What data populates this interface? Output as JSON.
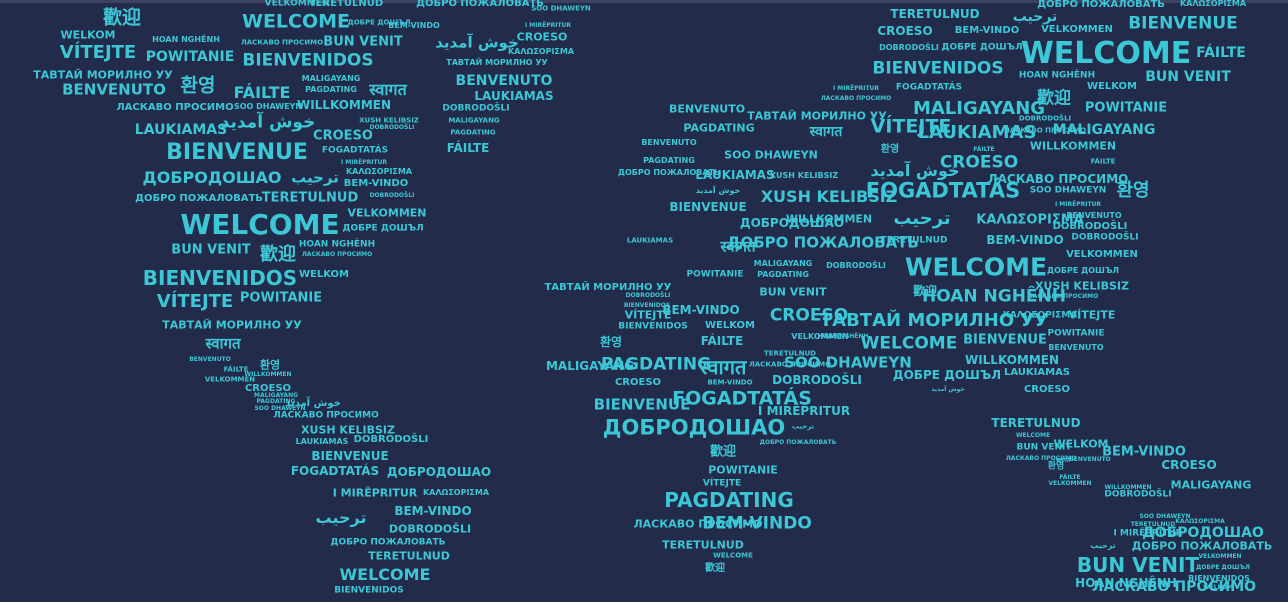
{
  "text_color": "#3cc7d6",
  "background_color": "#232b4a",
  "words": [
    {
      "t": "VELKOMMEN"
    },
    {
      "t": "TERETULNUD"
    },
    {
      "t": "ДОБРО ПОЖАЛОВАТЬ"
    },
    {
      "t": "SOO DHAWEYN"
    },
    {
      "t": "歡迎"
    },
    {
      "t": "WELCOME"
    },
    {
      "t": "ДОБРЕ ДОШЪЛ"
    },
    {
      "t": "BEM-VINDO"
    },
    {
      "t": "I MIRËPRITUR"
    },
    {
      "t": "WELKOM"
    },
    {
      "t": "HOAN NGHÊNH"
    },
    {
      "t": "BUN VENIT"
    },
    {
      "t": "خوش آمدید"
    },
    {
      "t": "CROESO"
    },
    {
      "t": "VÍTEJTE"
    },
    {
      "t": "POWITANIE"
    },
    {
      "t": "ЛАСКАВО ПРОСИМО"
    },
    {
      "t": "ΚΑΛΩΣΟΡΙΣΜΑ"
    },
    {
      "t": "BIENVENIDOS"
    },
    {
      "t": "ТАВТАЙ МОРИЛНО УУ"
    },
    {
      "t": "ТАВТАЙ МОРИЛНО УУ"
    },
    {
      "t": "MALIGAYANG"
    },
    {
      "t": "BENVENUTO"
    },
    {
      "t": "BENVENUTO"
    },
    {
      "t": "환영"
    },
    {
      "t": "FÁILTE"
    },
    {
      "t": "PAGDATING"
    },
    {
      "t": "स्वागत"
    },
    {
      "t": "LAUKIAMAS"
    },
    {
      "t": "ЛАСКАВО ПРОСИМО"
    },
    {
      "t": "SOO DHAWEYN"
    },
    {
      "t": "WILLKOMMEN"
    },
    {
      "t": "DOBRODOŠLI"
    },
    {
      "t": "MALIGAYANG"
    },
    {
      "t": "XUSH KELIBSIZ"
    },
    {
      "t": "LAUKIAMAS"
    },
    {
      "t": "خوش آمدید"
    },
    {
      "t": "CROESO"
    },
    {
      "t": "DOBRODOŠLI"
    },
    {
      "t": "PAGDATING"
    },
    {
      "t": "BIENVENUE"
    },
    {
      "t": "FOGADTATÁS"
    },
    {
      "t": "FÁILTE"
    },
    {
      "t": "I MIRËPRITUR"
    },
    {
      "t": "ДОБРОДОШАО"
    },
    {
      "t": "ترحيب"
    },
    {
      "t": "ΚΑΛΩΣΟΡΙΣΜΑ"
    },
    {
      "t": "BEM-VINDO"
    },
    {
      "t": "ДОБРО ПОЖАЛОВАТЬ"
    },
    {
      "t": "TERETULNUD"
    },
    {
      "t": "DOBRODOŠLI"
    },
    {
      "t": "WELCOME"
    },
    {
      "t": "VELKOMMEN"
    },
    {
      "t": "ДОБРЕ ДОШЪЛ"
    },
    {
      "t": "BUN VENIT"
    },
    {
      "t": "歡迎"
    },
    {
      "t": "HOAN NGHÊNH"
    },
    {
      "t": "ЛАСКАВО ПРОСИМО"
    },
    {
      "t": "BIENVENIDOS"
    },
    {
      "t": "WELKOM"
    },
    {
      "t": "VÍTEJTE"
    },
    {
      "t": "POWITANIE"
    },
    {
      "t": "ТАВТАЙ МОРИЛНО УУ"
    },
    {
      "t": "स्वागत"
    },
    {
      "t": "BENVENUTO"
    },
    {
      "t": "환영"
    },
    {
      "t": "FÁILTE"
    },
    {
      "t": "WILLKOMMEN"
    },
    {
      "t": "VELKOMMEN"
    },
    {
      "t": "CROESO"
    },
    {
      "t": "MALIGAYANG"
    },
    {
      "t": "PAGDATING"
    },
    {
      "t": "SOO DHAWEYN"
    },
    {
      "t": "خوش آمدید"
    },
    {
      "t": "ЛАСКАВО ПРОСИМО"
    },
    {
      "t": "XUSH KELIBSIZ"
    },
    {
      "t": "LAUKIAMAS"
    },
    {
      "t": "DOBRODOŠLI"
    },
    {
      "t": "BIENVENUE"
    },
    {
      "t": "FOGADTATÁS"
    },
    {
      "t": "ДОБРОДОШАО"
    },
    {
      "t": "I MIRËPRITUR"
    },
    {
      "t": "ΚΑΛΩΣΟΡΙΣΜΑ"
    },
    {
      "t": "ترحيب"
    },
    {
      "t": "BEM-VINDO"
    },
    {
      "t": "DOBRODOŠLI"
    },
    {
      "t": "ДОБРО ПОЖАЛОВАТЬ"
    },
    {
      "t": "TERETULNUD"
    },
    {
      "t": "WELCOME"
    },
    {
      "t": "BIENVENIDOS"
    },
    {
      "t": "TERETULNUD"
    },
    {
      "t": "ترحيب"
    },
    {
      "t": "ДОБРО ПОЖАЛОВАТЬ"
    },
    {
      "t": "ΚΑΛΩΣΟΡΙΣΜΑ"
    },
    {
      "t": "CROESO"
    },
    {
      "t": "BEM-VINDO"
    },
    {
      "t": "VELKOMMEN"
    },
    {
      "t": "BIENVENUE"
    },
    {
      "t": "DOBRODOŠLI"
    },
    {
      "t": "ДОБРЕ ДОШЪЛ"
    },
    {
      "t": "WELCOME"
    },
    {
      "t": "FÁILTE"
    },
    {
      "t": "BIENVENIDOS"
    },
    {
      "t": "HOAN NGHÊNH"
    },
    {
      "t": "BUN VENIT"
    },
    {
      "t": "I MIRËPRITUR"
    },
    {
      "t": "FOGADTATÁS"
    },
    {
      "t": "WELKOM"
    },
    {
      "t": "ЛАСКАВО ПРОСИМО"
    },
    {
      "t": "歡迎"
    },
    {
      "t": "POWITANIE"
    },
    {
      "t": "BENVENUTO"
    },
    {
      "t": "ТАВТАЙ МОРИЛНО УУ"
    },
    {
      "t": "VÍTEJTE"
    },
    {
      "t": "MALIGAYANG"
    },
    {
      "t": "PAGDATING"
    },
    {
      "t": "स्वागत"
    },
    {
      "t": "LAUKIAMAS"
    },
    {
      "t": "BENVENUTO"
    },
    {
      "t": "환영"
    },
    {
      "t": "FÁILTE"
    },
    {
      "t": "DOBRODOŠLI"
    },
    {
      "t": "ЛАСКАВО ПРОСИМО"
    },
    {
      "t": "SOO DHAWEYN"
    },
    {
      "t": "WILLKOMMEN"
    },
    {
      "t": "MALIGAYANG"
    },
    {
      "t": "PAGDATING"
    },
    {
      "t": "ДОБРО ПОЖАЛОВАТЬ"
    },
    {
      "t": "LAUKIAMAS"
    },
    {
      "t": "خوش آمدید"
    },
    {
      "t": "XUSH KELIBSIZ"
    },
    {
      "t": "FÁILTE"
    },
    {
      "t": "XUSH KELIBSIZ"
    },
    {
      "t": "CROESO"
    },
    {
      "t": "ЛАСКАВО ПРОСИМО"
    },
    {
      "t": "خوش آمدید"
    },
    {
      "t": "BIENVENUE"
    },
    {
      "t": "FOGADTATÁS"
    },
    {
      "t": "환영"
    },
    {
      "t": "SOO DHAWEYN"
    },
    {
      "t": "I MIRËPRITUR"
    },
    {
      "t": "BENVENUTO"
    },
    {
      "t": "WILLKOMMEN"
    },
    {
      "t": "ДОБРОДОШАО"
    },
    {
      "t": "ترحيب"
    },
    {
      "t": "ΚΑΛΩΣΟΡΙΣΜΑ"
    },
    {
      "t": "DOBRODOŠLI"
    },
    {
      "t": "LAUKIAMAS"
    },
    {
      "t": "स्वागत"
    },
    {
      "t": "ДОБРО ПОЖАЛОВАТЬ"
    },
    {
      "t": "TERETULNUD"
    },
    {
      "t": "BEM-VINDO"
    },
    {
      "t": "DOBRODOŠLI"
    },
    {
      "t": "MALIGAYANG"
    },
    {
      "t": "PAGDATING"
    },
    {
      "t": "DOBRODOŠLI"
    },
    {
      "t": "WELCOME"
    },
    {
      "t": "VELKOMMEN"
    },
    {
      "t": "ДОБРЕ ДОШЪЛ"
    },
    {
      "t": "POWITANIE"
    },
    {
      "t": "ТАВТАЙ МОРИЛНО УУ"
    },
    {
      "t": "BUN VENIT"
    },
    {
      "t": "歡迎"
    },
    {
      "t": "HOAN NGHÊNH"
    },
    {
      "t": "XUSH KELIBSIZ"
    },
    {
      "t": "ЛАСКАВО ПРОСИМО"
    },
    {
      "t": "DOBRODOŠLI"
    },
    {
      "t": "BIENVENIDOS"
    },
    {
      "t": "BEM-VINDO"
    },
    {
      "t": "VÍTEJTE"
    },
    {
      "t": "BIENVENIDOS"
    },
    {
      "t": "WELKOM"
    },
    {
      "t": "CROESO"
    },
    {
      "t": "HOAN NGHÊNH"
    },
    {
      "t": "VELKOMMEN"
    },
    {
      "t": "ТАВТАЙ МОРИЛНО УУ"
    },
    {
      "t": "ΚΑΛΩΣΟΡΙΣΜΑ"
    },
    {
      "t": "VÍTEJTE"
    },
    {
      "t": "POWITANIE"
    },
    {
      "t": "WELCOME"
    },
    {
      "t": "BIENVENUE"
    },
    {
      "t": "BENVENUTO"
    },
    {
      "t": "환영"
    },
    {
      "t": "FÁILTE"
    },
    {
      "t": "MALIGAYANG"
    },
    {
      "t": "PAGDATING"
    },
    {
      "t": "स्वागत"
    },
    {
      "t": "TERETULNUD"
    },
    {
      "t": "ЛАСКАВО ПРОСИМО"
    },
    {
      "t": "SOO DHAWEYN"
    },
    {
      "t": "WILLKOMMEN"
    },
    {
      "t": "CROESO"
    },
    {
      "t": "BEM-VINDO"
    },
    {
      "t": "DOBRODOŠLI"
    },
    {
      "t": "ДОБРЕ ДОШЪЛ"
    },
    {
      "t": "LAUKIAMAS"
    },
    {
      "t": "خوش آمدید"
    },
    {
      "t": "CROESO"
    },
    {
      "t": "BIENVENUE"
    },
    {
      "t": "FOGADTATÁS"
    },
    {
      "t": "I MIRËPRITUR"
    },
    {
      "t": "ДОБРОДОШАО"
    },
    {
      "t": "ترحيب"
    },
    {
      "t": "TERETULNUD"
    },
    {
      "t": "ДОБРО ПОЖАЛОВАТЬ"
    },
    {
      "t": "WELCOME"
    },
    {
      "t": "BUN VENIT"
    },
    {
      "t": "歡迎"
    },
    {
      "t": "WELKOM"
    },
    {
      "t": "ЛАСКАВО ПРОСИМО"
    },
    {
      "t": "POWITANIE"
    },
    {
      "t": "स्वागत"
    },
    {
      "t": "BENVENUTO"
    },
    {
      "t": "환영"
    },
    {
      "t": "FÁILTE"
    },
    {
      "t": "VELKOMMEN"
    },
    {
      "t": "WILLKOMMEN"
    },
    {
      "t": "VÍTEJTE"
    },
    {
      "t": "BEM-VINDO"
    },
    {
      "t": "CROESO"
    },
    {
      "t": "DOBRODOŠLI"
    },
    {
      "t": "MALIGAYANG"
    },
    {
      "t": "PAGDATING"
    },
    {
      "t": "SOO DHAWEYN"
    },
    {
      "t": "TERETULNUD"
    },
    {
      "t": "ЛАСКАВО ПРОСИМО"
    },
    {
      "t": "BEM-VINDO"
    },
    {
      "t": "ΚΑΛΩΣΟΡΙΣΜΑ"
    },
    {
      "t": "I MIRËPRITUR"
    },
    {
      "t": "ДОБРОДОШАО"
    },
    {
      "t": "ترحيب"
    },
    {
      "t": "ДОБРО ПОЖАЛОВАТЬ"
    },
    {
      "t": "TERETULNUD"
    },
    {
      "t": "VELKOMMEN"
    },
    {
      "t": "WELCOME"
    },
    {
      "t": "ДОБРЕ ДОШЪЛ"
    },
    {
      "t": "BUN VENIT"
    },
    {
      "t": "歡迎"
    },
    {
      "t": "HOAN NGHÊNH"
    },
    {
      "t": "ЛАСКАВО ПРОСИМО"
    },
    {
      "t": "BIENVENIDOS"
    },
    {
      "t": "WELKOM"
    }
  ]
}
